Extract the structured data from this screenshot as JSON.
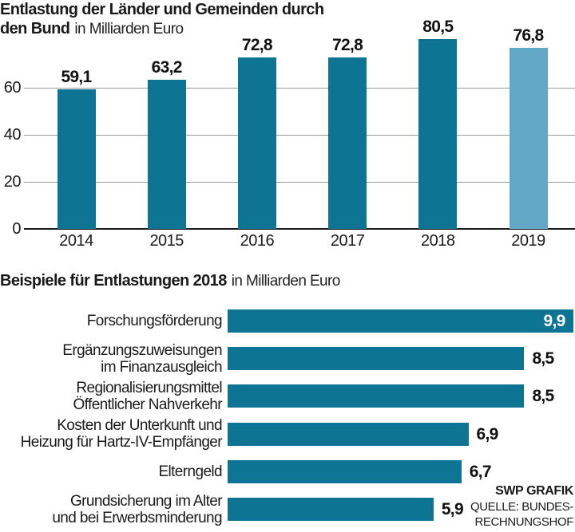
{
  "colors": {
    "bar_teal": "#0d7493",
    "bar_light_blue": "#62a7c6",
    "grid_gray": "#999999",
    "axis_black": "#1c1c1c",
    "text": "#1a1a1a",
    "value_inside": "#ffffff"
  },
  "top_chart": {
    "title_line1": "Entlastung der Länder und Gemeinden durch",
    "title_line2_bold": "den Bund",
    "title_line2_unit": "in Milliarden Euro"
  },
  "bottom_chart": {
    "title_bold": "Beispiele für Entlastungen 2018",
    "title_unit": "in Milliarden Euro"
  },
  "credit": {
    "grafik": "SWP GRAFIK",
    "source_line1": "QUELLE: BUNDES-",
    "source_line2": "RECHNUNGSHOF"
  },
  "chart_data": [
    {
      "type": "bar",
      "title": "Entlastung der Länder und Gemeinden durch den Bund",
      "unit": "in Milliarden Euro",
      "categories": [
        "2014",
        "2015",
        "2016",
        "2017",
        "2018",
        "2019"
      ],
      "values": [
        59.1,
        63.2,
        72.8,
        72.8,
        80.5,
        76.8
      ],
      "value_labels": [
        "59,1",
        "63,2",
        "72,8",
        "72,8",
        "80,5",
        "76,8"
      ],
      "highlight_index": 5,
      "yticks": [
        0,
        20,
        40,
        60
      ],
      "ylim": [
        0,
        85
      ],
      "grid": true,
      "legend": "none"
    },
    {
      "type": "bar_horizontal",
      "title": "Beispiele für Entlastungen 2018",
      "unit": "in Milliarden Euro",
      "categories": [
        [
          "Forschungsförderung"
        ],
        [
          "Ergänzungszuweisungen",
          "im Finanzausgleich"
        ],
        [
          "Regionalisierungsmittel",
          "Öffentlicher Nahverkehr"
        ],
        [
          "Kosten der Unterkunft und",
          "Heizung für Hartz-IV-Empfänger"
        ],
        [
          "Elterngeld"
        ],
        [
          "Grundsicherung im Alter",
          "und bei Erwerbsminderung"
        ]
      ],
      "values": [
        9.9,
        8.5,
        8.5,
        6.9,
        6.7,
        5.9
      ],
      "value_labels": [
        "9,9",
        "8,5",
        "8,5",
        "6,9",
        "6,7",
        "5,9"
      ],
      "label_inside": [
        true,
        false,
        false,
        false,
        false,
        false
      ],
      "xlim": [
        0,
        9.95
      ],
      "grid": false,
      "legend": "none"
    }
  ]
}
